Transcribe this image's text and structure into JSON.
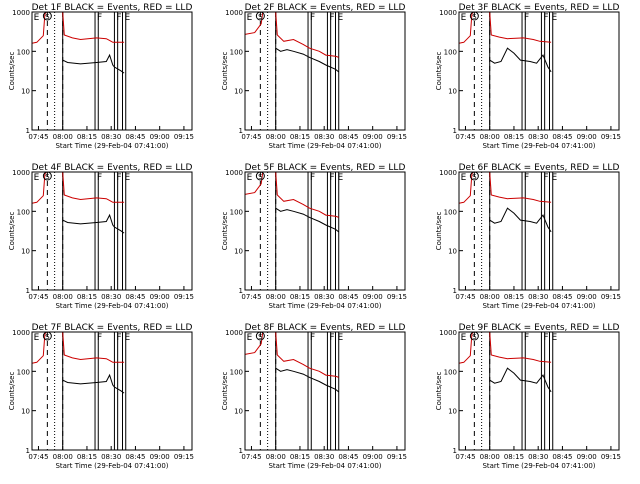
{
  "colors": {
    "events": "#000000",
    "lld": "#cc0000",
    "axes": "#000000",
    "background": "#ffffff"
  },
  "shared": {
    "ylabel": "Counts/sec",
    "xlabel": "Start Time (29-Feb-04 07:41:00)",
    "x_ticks": [
      "07:45",
      "08:00",
      "08:15",
      "08:30",
      "08:45",
      "09:00",
      "09:15"
    ],
    "y_ticks": [
      "1",
      "10",
      "100",
      "1000"
    ],
    "y_scale": "log",
    "ylim": [
      1,
      1000
    ],
    "xlim_minutes_after_start": [
      0,
      99
    ],
    "markers": {
      "S": "S",
      "F": "F",
      "E": "E"
    }
  },
  "chart_data": [
    {
      "type": "line",
      "title": "Det 1F BLACK = Events, RED = LLD",
      "series": [
        {
          "key": "events",
          "points": [
            [
              19,
              60
            ],
            [
              22,
              52
            ],
            [
              30,
              48
            ],
            [
              40,
              52
            ],
            [
              46,
              55
            ],
            [
              48,
              80
            ],
            [
              50,
              45
            ],
            [
              51,
              40
            ],
            [
              55,
              32
            ],
            [
              57,
              28
            ]
          ]
        },
        {
          "key": "lld",
          "points": [
            [
              0,
              160
            ],
            [
              3,
              170
            ],
            [
              7,
              250
            ],
            [
              8,
              900
            ],
            [
              9,
              1000
            ],
            [
              19,
              1000
            ],
            [
              20,
              260
            ],
            [
              25,
              220
            ],
            [
              30,
              200
            ],
            [
              40,
              220
            ],
            [
              46,
              210
            ],
            [
              48,
              190
            ],
            [
              50,
              170
            ],
            [
              57,
              170
            ]
          ]
        }
      ],
      "verticals": [
        19,
        39,
        41,
        51,
        53,
        56,
        58
      ]
    },
    {
      "type": "line",
      "title": "Det 2F BLACK = Events, RED = LLD",
      "series": [
        {
          "key": "events",
          "points": [
            [
              19,
              120
            ],
            [
              22,
              100
            ],
            [
              26,
              110
            ],
            [
              30,
              100
            ],
            [
              36,
              85
            ],
            [
              40,
              70
            ],
            [
              46,
              55
            ],
            [
              50,
              45
            ],
            [
              56,
              35
            ],
            [
              58,
              30
            ]
          ]
        },
        {
          "key": "lld",
          "points": [
            [
              0,
              270
            ],
            [
              6,
              300
            ],
            [
              10,
              500
            ],
            [
              11,
              1000
            ],
            [
              19,
              1000
            ],
            [
              20,
              260
            ],
            [
              24,
              180
            ],
            [
              30,
              200
            ],
            [
              36,
              150
            ],
            [
              40,
              120
            ],
            [
              46,
              100
            ],
            [
              50,
              80
            ],
            [
              56,
              75
            ],
            [
              58,
              70
            ]
          ]
        }
      ],
      "verticals": [
        19,
        39,
        41,
        51,
        53,
        56,
        58
      ]
    },
    {
      "type": "line",
      "title": "Det 3F BLACK = Events, RED = LLD",
      "series": [
        {
          "key": "events",
          "points": [
            [
              19,
              60
            ],
            [
              22,
              50
            ],
            [
              26,
              55
            ],
            [
              30,
              120
            ],
            [
              34,
              90
            ],
            [
              38,
              60
            ],
            [
              44,
              55
            ],
            [
              48,
              50
            ],
            [
              52,
              80
            ],
            [
              55,
              40
            ],
            [
              57,
              30
            ]
          ]
        },
        {
          "key": "lld",
          "points": [
            [
              0,
              160
            ],
            [
              3,
              170
            ],
            [
              7,
              250
            ],
            [
              8,
              900
            ],
            [
              9,
              1000
            ],
            [
              19,
              1000
            ],
            [
              20,
              260
            ],
            [
              25,
              230
            ],
            [
              30,
              210
            ],
            [
              40,
              220
            ],
            [
              46,
              200
            ],
            [
              50,
              180
            ],
            [
              57,
              170
            ]
          ]
        }
      ],
      "verticals": [
        19,
        39,
        41,
        51,
        53,
        56,
        58
      ]
    },
    {
      "type": "line",
      "title": "Det 4F BLACK = Events, RED = LLD",
      "series": [
        {
          "key": "events",
          "points": [
            [
              19,
              60
            ],
            [
              22,
              52
            ],
            [
              30,
              48
            ],
            [
              40,
              52
            ],
            [
              46,
              55
            ],
            [
              48,
              80
            ],
            [
              50,
              45
            ],
            [
              51,
              40
            ],
            [
              55,
              32
            ],
            [
              57,
              28
            ]
          ]
        },
        {
          "key": "lld",
          "points": [
            [
              0,
              160
            ],
            [
              3,
              170
            ],
            [
              7,
              250
            ],
            [
              8,
              900
            ],
            [
              9,
              1000
            ],
            [
              19,
              1000
            ],
            [
              20,
              260
            ],
            [
              25,
              220
            ],
            [
              30,
              200
            ],
            [
              40,
              220
            ],
            [
              46,
              210
            ],
            [
              48,
              190
            ],
            [
              50,
              170
            ],
            [
              57,
              170
            ]
          ]
        }
      ],
      "verticals": [
        19,
        39,
        41,
        51,
        53,
        56,
        58
      ]
    },
    {
      "type": "line",
      "title": "Det 5F BLACK = Events, RED = LLD",
      "series": [
        {
          "key": "events",
          "points": [
            [
              19,
              120
            ],
            [
              22,
              100
            ],
            [
              26,
              110
            ],
            [
              30,
              100
            ],
            [
              36,
              85
            ],
            [
              40,
              70
            ],
            [
              46,
              55
            ],
            [
              50,
              45
            ],
            [
              56,
              35
            ],
            [
              58,
              30
            ]
          ]
        },
        {
          "key": "lld",
          "points": [
            [
              0,
              270
            ],
            [
              6,
              300
            ],
            [
              10,
              500
            ],
            [
              11,
              1000
            ],
            [
              19,
              1000
            ],
            [
              20,
              260
            ],
            [
              24,
              180
            ],
            [
              30,
              200
            ],
            [
              36,
              150
            ],
            [
              40,
              120
            ],
            [
              46,
              100
            ],
            [
              50,
              80
            ],
            [
              56,
              75
            ],
            [
              58,
              70
            ]
          ]
        }
      ],
      "verticals": [
        19,
        39,
        41,
        51,
        53,
        56,
        58
      ]
    },
    {
      "type": "line",
      "title": "Det 6F BLACK = Events, RED = LLD",
      "series": [
        {
          "key": "events",
          "points": [
            [
              19,
              60
            ],
            [
              22,
              50
            ],
            [
              26,
              55
            ],
            [
              30,
              120
            ],
            [
              34,
              90
            ],
            [
              38,
              60
            ],
            [
              44,
              55
            ],
            [
              48,
              50
            ],
            [
              52,
              80
            ],
            [
              55,
              40
            ],
            [
              57,
              30
            ]
          ]
        },
        {
          "key": "lld",
          "points": [
            [
              0,
              160
            ],
            [
              3,
              170
            ],
            [
              7,
              250
            ],
            [
              8,
              900
            ],
            [
              9,
              1000
            ],
            [
              19,
              1000
            ],
            [
              20,
              260
            ],
            [
              25,
              230
            ],
            [
              30,
              210
            ],
            [
              40,
              220
            ],
            [
              46,
              200
            ],
            [
              50,
              180
            ],
            [
              57,
              170
            ]
          ]
        }
      ],
      "verticals": [
        19,
        39,
        41,
        51,
        53,
        56,
        58
      ]
    },
    {
      "type": "line",
      "title": "Det 7F BLACK = Events, RED = LLD",
      "series": [
        {
          "key": "events",
          "points": [
            [
              19,
              60
            ],
            [
              22,
              52
            ],
            [
              30,
              48
            ],
            [
              40,
              52
            ],
            [
              46,
              55
            ],
            [
              48,
              80
            ],
            [
              50,
              45
            ],
            [
              51,
              40
            ],
            [
              55,
              32
            ],
            [
              57,
              28
            ]
          ]
        },
        {
          "key": "lld",
          "points": [
            [
              0,
              160
            ],
            [
              3,
              170
            ],
            [
              7,
              250
            ],
            [
              8,
              900
            ],
            [
              9,
              1000
            ],
            [
              19,
              1000
            ],
            [
              20,
              260
            ],
            [
              25,
              220
            ],
            [
              30,
              200
            ],
            [
              40,
              220
            ],
            [
              46,
              210
            ],
            [
              48,
              190
            ],
            [
              50,
              170
            ],
            [
              57,
              170
            ]
          ]
        }
      ],
      "verticals": [
        19,
        39,
        41,
        51,
        53,
        56,
        58
      ]
    },
    {
      "type": "line",
      "title": "Det 8F BLACK = Events, RED = LLD",
      "series": [
        {
          "key": "events",
          "points": [
            [
              19,
              120
            ],
            [
              22,
              100
            ],
            [
              26,
              110
            ],
            [
              30,
              100
            ],
            [
              36,
              85
            ],
            [
              40,
              70
            ],
            [
              46,
              55
            ],
            [
              50,
              45
            ],
            [
              56,
              35
            ],
            [
              58,
              30
            ]
          ]
        },
        {
          "key": "lld",
          "points": [
            [
              0,
              270
            ],
            [
              6,
              300
            ],
            [
              10,
              500
            ],
            [
              11,
              1000
            ],
            [
              19,
              1000
            ],
            [
              20,
              260
            ],
            [
              24,
              180
            ],
            [
              30,
              200
            ],
            [
              36,
              150
            ],
            [
              40,
              120
            ],
            [
              46,
              100
            ],
            [
              50,
              80
            ],
            [
              56,
              75
            ],
            [
              58,
              70
            ]
          ]
        }
      ],
      "verticals": [
        19,
        39,
        41,
        51,
        53,
        56,
        58
      ]
    },
    {
      "type": "line",
      "title": "Det 9F BLACK = Events, RED = LLD",
      "series": [
        {
          "key": "events",
          "points": [
            [
              19,
              60
            ],
            [
              22,
              50
            ],
            [
              26,
              55
            ],
            [
              30,
              120
            ],
            [
              34,
              90
            ],
            [
              38,
              60
            ],
            [
              44,
              55
            ],
            [
              48,
              50
            ],
            [
              52,
              80
            ],
            [
              55,
              40
            ],
            [
              57,
              30
            ]
          ]
        },
        {
          "key": "lld",
          "points": [
            [
              0,
              160
            ],
            [
              3,
              170
            ],
            [
              7,
              250
            ],
            [
              8,
              900
            ],
            [
              9,
              1000
            ],
            [
              19,
              1000
            ],
            [
              20,
              260
            ],
            [
              25,
              230
            ],
            [
              30,
              210
            ],
            [
              40,
              220
            ],
            [
              46,
              200
            ],
            [
              50,
              180
            ],
            [
              57,
              170
            ]
          ]
        }
      ],
      "verticals": [
        19,
        39,
        41,
        51,
        53,
        56,
        58
      ]
    }
  ]
}
